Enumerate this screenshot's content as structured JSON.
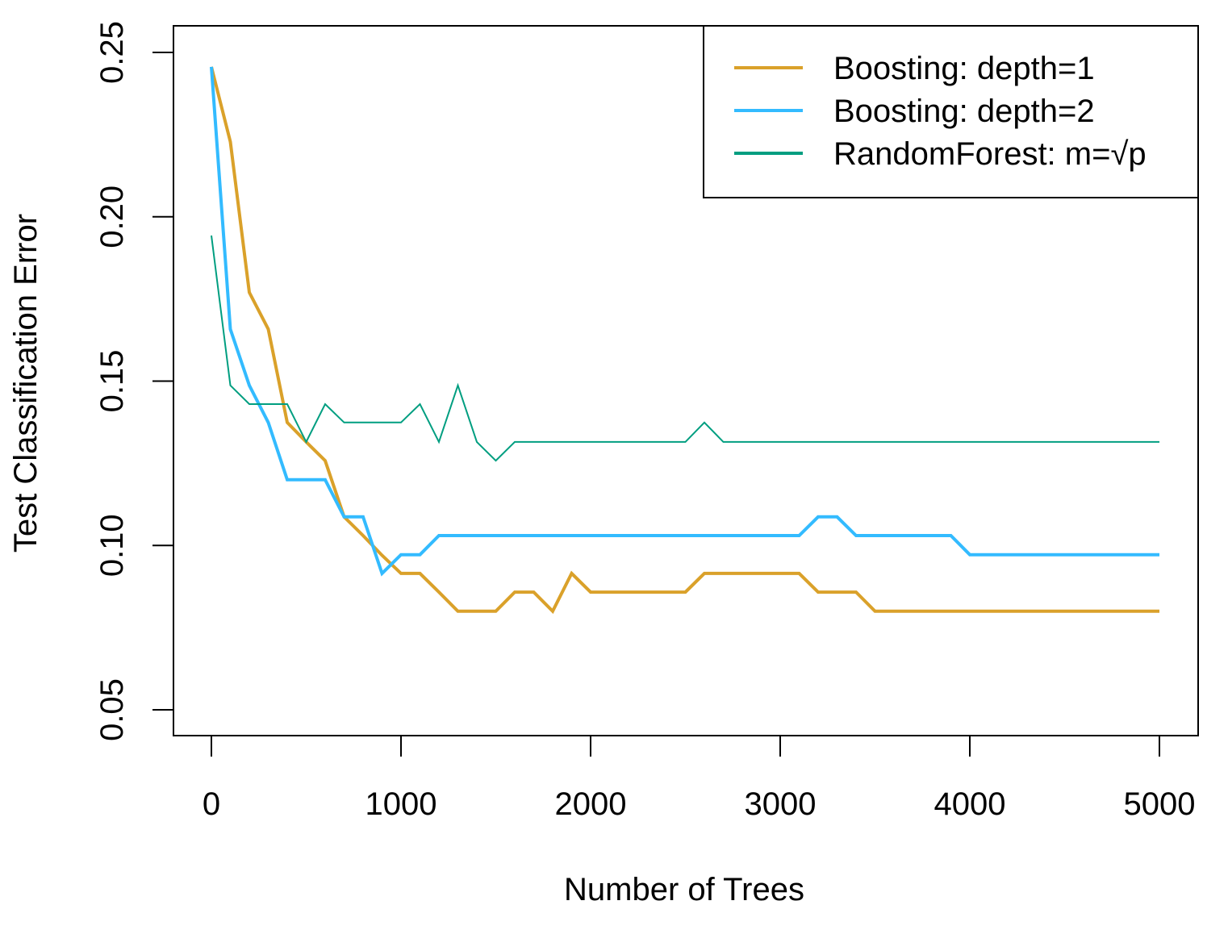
{
  "chart_data": {
    "type": "line",
    "title": "",
    "xlabel": "Number of Trees",
    "ylabel": "Test Classification Error",
    "xlim": [
      0,
      5000
    ],
    "ylim": [
      0.05,
      0.25
    ],
    "xticks": [
      0,
      1000,
      2000,
      3000,
      4000,
      5000
    ],
    "xtick_labels": [
      "0",
      "1000",
      "2000",
      "3000",
      "4000",
      "5000"
    ],
    "yticks": [
      0.05,
      0.1,
      0.15,
      0.2,
      0.25
    ],
    "ytick_labels": [
      "0.05",
      "0.10",
      "0.15",
      "0.20",
      "0.25"
    ],
    "grid": false,
    "legend_position": "top-right",
    "x": [
      0,
      100,
      200,
      300,
      400,
      500,
      600,
      700,
      800,
      900,
      1000,
      1100,
      1200,
      1300,
      1400,
      1500,
      1600,
      1700,
      1800,
      1900,
      2000,
      2100,
      2200,
      2300,
      2400,
      2500,
      2600,
      2700,
      2800,
      2900,
      3000,
      3100,
      3200,
      3300,
      3400,
      3500,
      3600,
      3700,
      3800,
      3900,
      4000,
      4100,
      4200,
      4300,
      4400,
      4500,
      4600,
      4700,
      4800,
      4900,
      5000
    ],
    "series": [
      {
        "name": "Boosting: depth=1",
        "color": "#DAA12A",
        "width": 2,
        "values": [
          0.2456,
          0.2228,
          0.177,
          0.1658,
          0.1374,
          0.1315,
          0.1258,
          0.1087,
          0.103,
          0.097,
          0.0915,
          0.0915,
          0.0858,
          0.08,
          0.08,
          0.08,
          0.0858,
          0.0858,
          0.08,
          0.0915,
          0.0858,
          0.0858,
          0.0858,
          0.0858,
          0.0858,
          0.0858,
          0.0915,
          0.0915,
          0.0915,
          0.0915,
          0.0915,
          0.0915,
          0.0858,
          0.0858,
          0.0858,
          0.08,
          0.08,
          0.08,
          0.08,
          0.08,
          0.08,
          0.08,
          0.08,
          0.08,
          0.08,
          0.08,
          0.08,
          0.08,
          0.08,
          0.08,
          0.08
        ]
      },
      {
        "name": "Boosting: depth=2",
        "color": "#33BBFF",
        "width": 2,
        "values": [
          0.2456,
          0.1658,
          0.1487,
          0.1374,
          0.12,
          0.12,
          0.12,
          0.1087,
          0.1087,
          0.0915,
          0.0972,
          0.0972,
          0.103,
          0.103,
          0.103,
          0.103,
          0.103,
          0.103,
          0.103,
          0.103,
          0.103,
          0.103,
          0.103,
          0.103,
          0.103,
          0.103,
          0.103,
          0.103,
          0.103,
          0.103,
          0.103,
          0.103,
          0.1087,
          0.1087,
          0.103,
          0.103,
          0.103,
          0.103,
          0.103,
          0.103,
          0.0972,
          0.0972,
          0.0972,
          0.0972,
          0.0972,
          0.0972,
          0.0972,
          0.0972,
          0.0972,
          0.0972,
          0.0972
        ]
      },
      {
        "name": "RandomForest: m=√p",
        "color": "#009E80",
        "width": 1,
        "values": [
          0.1943,
          0.1487,
          0.143,
          0.143,
          0.143,
          0.1315,
          0.143,
          0.1374,
          0.1374,
          0.1374,
          0.1374,
          0.143,
          0.1315,
          0.1487,
          0.1315,
          0.1258,
          0.1315,
          0.1315,
          0.1315,
          0.1315,
          0.1315,
          0.1315,
          0.1315,
          0.1315,
          0.1315,
          0.1315,
          0.1374,
          0.1315,
          0.1315,
          0.1315,
          0.1315,
          0.1315,
          0.1315,
          0.1315,
          0.1315,
          0.1315,
          0.1315,
          0.1315,
          0.1315,
          0.1315,
          0.1315,
          0.1315,
          0.1315,
          0.1315,
          0.1315,
          0.1315,
          0.1315,
          0.1315,
          0.1315,
          0.1315,
          0.1315
        ]
      }
    ]
  }
}
